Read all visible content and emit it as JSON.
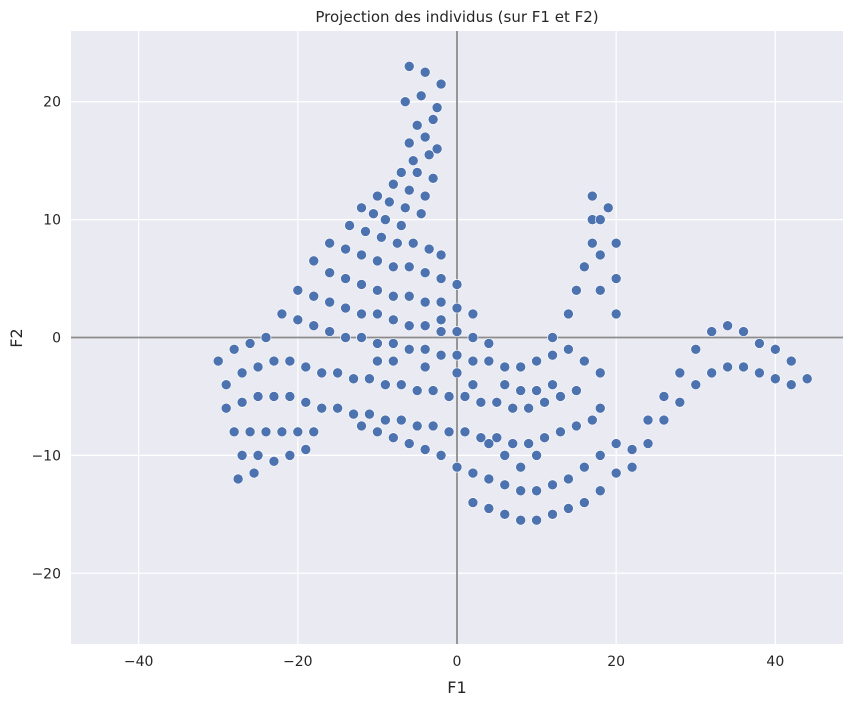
{
  "chart_data": {
    "type": "scatter",
    "title": "Projection des individus (sur F1 et F2)",
    "xlabel": "F1",
    "ylabel": "F2",
    "xlim": [
      -48.5,
      48.5
    ],
    "ylim": [
      -26,
      26
    ],
    "xticks": [
      -40,
      -20,
      0,
      20,
      40
    ],
    "yticks": [
      -20,
      -10,
      0,
      10,
      20
    ],
    "xtick_labels": [
      "−40",
      "−20",
      "0",
      "20",
      "40"
    ],
    "ytick_labels": [
      "−20",
      "−10",
      "0",
      "10",
      "20"
    ],
    "grid": true,
    "reference_lines": {
      "x": 0,
      "y": 0,
      "color": "#8c8c8c"
    },
    "colors": {
      "plot_background": "#eaeaf2",
      "grid": "#ffffff",
      "marker": "#4c72b0",
      "marker_edge": "#ffffff"
    },
    "series": [
      {
        "marker": "circle",
        "points": [
          [
            -6,
            23
          ],
          [
            -4,
            22.5
          ],
          [
            -2,
            21.5
          ],
          [
            -6.5,
            20
          ],
          [
            -4.5,
            20.5
          ],
          [
            -2.5,
            19.5
          ],
          [
            -5,
            18
          ],
          [
            -3,
            18.5
          ],
          [
            -6,
            16.5
          ],
          [
            -4,
            17
          ],
          [
            -2.5,
            16
          ],
          [
            -5.5,
            15
          ],
          [
            -3.5,
            15.5
          ],
          [
            -7,
            14
          ],
          [
            -5,
            14
          ],
          [
            -3,
            13.5
          ],
          [
            -8,
            13
          ],
          [
            -6,
            12.5
          ],
          [
            -4,
            12
          ],
          [
            -10,
            12
          ],
          [
            -8.5,
            11.5
          ],
          [
            -6.5,
            11
          ],
          [
            -4.5,
            10.5
          ],
          [
            -12,
            11
          ],
          [
            -10.5,
            10.5
          ],
          [
            -9,
            10
          ],
          [
            -7,
            9.5
          ],
          [
            -13.5,
            9.5
          ],
          [
            -11.5,
            9
          ],
          [
            -9.5,
            8.5
          ],
          [
            -7.5,
            8
          ],
          [
            -5.5,
            8
          ],
          [
            -3.5,
            7.5
          ],
          [
            -2,
            7
          ],
          [
            -16,
            8
          ],
          [
            -14,
            7.5
          ],
          [
            -12,
            7
          ],
          [
            -10,
            6.5
          ],
          [
            -8,
            6
          ],
          [
            -6,
            6
          ],
          [
            -4,
            5.5
          ],
          [
            -2,
            5
          ],
          [
            0,
            4.5
          ],
          [
            -18,
            6.5
          ],
          [
            -16,
            5.5
          ],
          [
            -14,
            5
          ],
          [
            -12,
            4.5
          ],
          [
            -10,
            4
          ],
          [
            -8,
            3.5
          ],
          [
            -6,
            3.5
          ],
          [
            -4,
            3
          ],
          [
            -2,
            3
          ],
          [
            0,
            2.5
          ],
          [
            2,
            2
          ],
          [
            -20,
            4
          ],
          [
            -18,
            3.5
          ],
          [
            -16,
            3
          ],
          [
            -14,
            2.5
          ],
          [
            -12,
            2
          ],
          [
            -10,
            2
          ],
          [
            -8,
            1.5
          ],
          [
            -6,
            1
          ],
          [
            -4,
            1
          ],
          [
            -2,
            0.5
          ],
          [
            0,
            0.5
          ],
          [
            2,
            0
          ],
          [
            4,
            -0.5
          ],
          [
            -22,
            2
          ],
          [
            -20,
            1.5
          ],
          [
            -18,
            1
          ],
          [
            -16,
            0.5
          ],
          [
            -14,
            0
          ],
          [
            -12,
            0
          ],
          [
            -10,
            -0.5
          ],
          [
            -8,
            -0.5
          ],
          [
            -6,
            -1
          ],
          [
            -4,
            -1
          ],
          [
            -2,
            -1.5
          ],
          [
            0,
            -1.5
          ],
          [
            2,
            -2
          ],
          [
            4,
            -2
          ],
          [
            6,
            -2.5
          ],
          [
            8,
            -2.5
          ],
          [
            10,
            -2
          ],
          [
            12,
            -1.5
          ],
          [
            -24,
            0
          ],
          [
            -26,
            -0.5
          ],
          [
            -28,
            -1
          ],
          [
            -30,
            -2
          ],
          [
            -29,
            -4
          ],
          [
            -27,
            -3
          ],
          [
            -25,
            -2.5
          ],
          [
            -23,
            -2
          ],
          [
            -21,
            -2
          ],
          [
            -19,
            -2.5
          ],
          [
            -17,
            -3
          ],
          [
            -15,
            -3
          ],
          [
            -13,
            -3.5
          ],
          [
            -11,
            -3.5
          ],
          [
            -9,
            -4
          ],
          [
            -7,
            -4
          ],
          [
            -5,
            -4.5
          ],
          [
            -3,
            -4.5
          ],
          [
            -1,
            -5
          ],
          [
            1,
            -5
          ],
          [
            3,
            -5.5
          ],
          [
            5,
            -5.5
          ],
          [
            7,
            -6
          ],
          [
            9,
            -6
          ],
          [
            11,
            -5.5
          ],
          [
            13,
            -5
          ],
          [
            15,
            -4.5
          ],
          [
            -29,
            -6
          ],
          [
            -27,
            -5.5
          ],
          [
            -25,
            -5
          ],
          [
            -23,
            -5
          ],
          [
            -21,
            -5
          ],
          [
            -19,
            -5.5
          ],
          [
            -17,
            -6
          ],
          [
            -15,
            -6
          ],
          [
            -13,
            -6.5
          ],
          [
            -11,
            -6.5
          ],
          [
            -9,
            -7
          ],
          [
            -7,
            -7
          ],
          [
            -5,
            -7.5
          ],
          [
            -3,
            -7.5
          ],
          [
            -1,
            -8
          ],
          [
            1,
            -8
          ],
          [
            3,
            -8.5
          ],
          [
            5,
            -8.5
          ],
          [
            7,
            -9
          ],
          [
            9,
            -9
          ],
          [
            11,
            -8.5
          ],
          [
            13,
            -8
          ],
          [
            15,
            -7.5
          ],
          [
            17,
            -7
          ],
          [
            -28,
            -8
          ],
          [
            -26,
            -8
          ],
          [
            -24,
            -8
          ],
          [
            -22,
            -8
          ],
          [
            -20,
            -8
          ],
          [
            -18,
            -8
          ],
          [
            -27,
            -10
          ],
          [
            -25,
            -10
          ],
          [
            -23,
            -10.5
          ],
          [
            -21,
            -10
          ],
          [
            -19,
            -9.5
          ],
          [
            -27.5,
            -12
          ],
          [
            -25.5,
            -11.5
          ],
          [
            -12,
            -7.5
          ],
          [
            -10,
            -8
          ],
          [
            -8,
            -8.5
          ],
          [
            -6,
            -9
          ],
          [
            -4,
            -9.5
          ],
          [
            -2,
            -10
          ],
          [
            0,
            -11
          ],
          [
            2,
            -11.5
          ],
          [
            4,
            -12
          ],
          [
            6,
            -12.5
          ],
          [
            8,
            -13
          ],
          [
            10,
            -13
          ],
          [
            12,
            -12.5
          ],
          [
            14,
            -12
          ],
          [
            16,
            -11
          ],
          [
            18,
            -10
          ],
          [
            20,
            -9
          ],
          [
            2,
            -14
          ],
          [
            4,
            -14.5
          ],
          [
            6,
            -15
          ],
          [
            8,
            -15.5
          ],
          [
            10,
            -15.5
          ],
          [
            12,
            -15
          ],
          [
            14,
            -14.5
          ],
          [
            16,
            -14
          ],
          [
            18,
            -13
          ],
          [
            20,
            -11.5
          ],
          [
            22,
            -9.5
          ],
          [
            24,
            -7
          ],
          [
            26,
            -5
          ],
          [
            28,
            -3
          ],
          [
            30,
            -1
          ],
          [
            32,
            0.5
          ],
          [
            34,
            1
          ],
          [
            36,
            0.5
          ],
          [
            38,
            -0.5
          ],
          [
            40,
            -1
          ],
          [
            42,
            -2
          ],
          [
            44,
            -3.5
          ],
          [
            42,
            -4
          ],
          [
            40,
            -3.5
          ],
          [
            38,
            -3
          ],
          [
            36,
            -2.5
          ],
          [
            34,
            -2.5
          ],
          [
            32,
            -3
          ],
          [
            30,
            -4
          ],
          [
            28,
            -5.5
          ],
          [
            26,
            -7
          ],
          [
            24,
            -9
          ],
          [
            22,
            -11
          ],
          [
            14,
            2
          ],
          [
            15,
            4
          ],
          [
            16,
            6
          ],
          [
            17,
            8
          ],
          [
            17,
            10
          ],
          [
            17,
            12
          ],
          [
            19,
            11
          ],
          [
            20,
            8
          ],
          [
            20,
            5
          ],
          [
            20,
            2
          ],
          [
            18,
            4
          ],
          [
            18,
            7
          ],
          [
            18,
            10
          ],
          [
            12,
            0
          ],
          [
            14,
            -1
          ],
          [
            16,
            -2
          ],
          [
            18,
            -3
          ],
          [
            18,
            -6
          ],
          [
            10,
            -10
          ],
          [
            8,
            -11
          ],
          [
            6,
            -10
          ],
          [
            4,
            -9
          ],
          [
            -2,
            1.5
          ],
          [
            0,
            -3
          ],
          [
            2,
            -4
          ],
          [
            -8,
            -2
          ],
          [
            -10,
            -2
          ],
          [
            -4,
            -2.5
          ],
          [
            6,
            -4
          ],
          [
            8,
            -4.5
          ],
          [
            10,
            -4.5
          ],
          [
            12,
            -4
          ]
        ]
      }
    ]
  }
}
